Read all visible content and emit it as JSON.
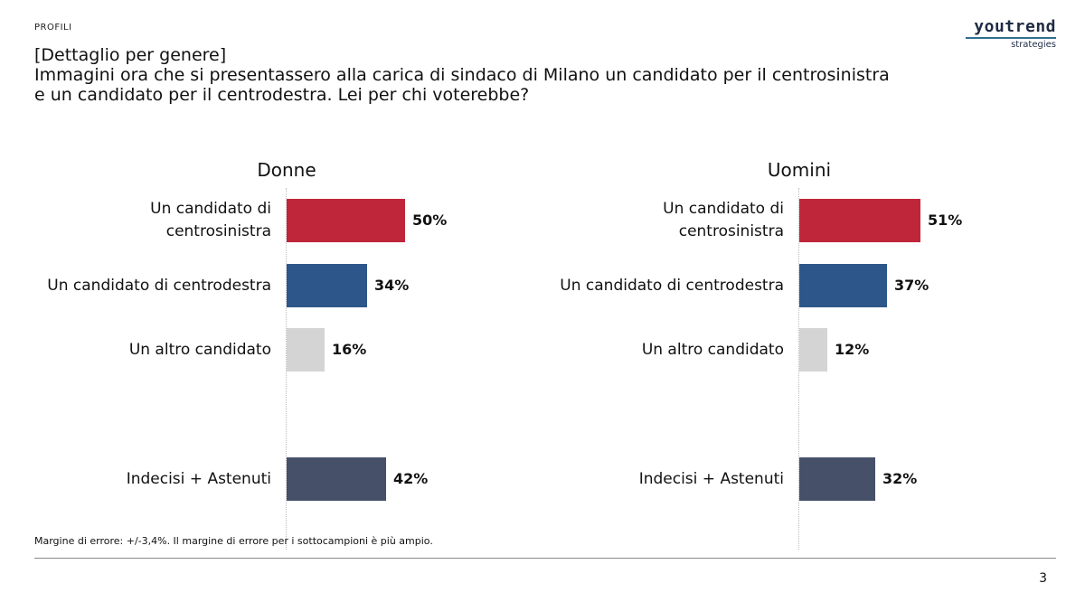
{
  "header": {
    "section_label": "PROFILI",
    "logo": {
      "word": "youtrend",
      "sub": "strategies"
    },
    "title_lines": [
      "[Dettaglio per genere]",
      "Immagini ora che si presentassero alla carica di sindaco di Milano un candidato per il centrosinistra",
      "e un candidato per il centrodestra. Lei per chi voterebbe?"
    ]
  },
  "chart_data": [
    {
      "type": "bar",
      "orientation": "horizontal",
      "title": "Donne",
      "categories": [
        "Un candidato di centrosinistra",
        "Un candidato di centrodestra",
        "Un altro candidato",
        "Indecisi + Astenuti"
      ],
      "category_lines": [
        [
          "Un candidato di",
          "centrosinistra"
        ],
        [
          "Un candidato di centrodestra"
        ],
        [
          "Un altro candidato"
        ],
        [
          "Indecisi + Astenuti"
        ]
      ],
      "values": [
        50,
        34,
        16,
        42
      ],
      "value_labels": [
        "50%",
        "34%",
        "16%",
        "42%"
      ],
      "unit": "%",
      "colors": [
        "#c0263a",
        "#2d578a",
        "#d4d4d4",
        "#465069"
      ],
      "xlim": [
        0,
        100
      ]
    },
    {
      "type": "bar",
      "orientation": "horizontal",
      "title": "Uomini",
      "categories": [
        "Un candidato di centrosinistra",
        "Un candidato di centrodestra",
        "Un altro candidato",
        "Indecisi + Astenuti"
      ],
      "category_lines": [
        [
          "Un candidato di",
          "centrosinistra"
        ],
        [
          "Un candidato di centrodestra"
        ],
        [
          "Un altro candidato"
        ],
        [
          "Indecisi + Astenuti"
        ]
      ],
      "values": [
        51,
        37,
        12,
        32
      ],
      "value_labels": [
        "51%",
        "37%",
        "12%",
        "32%"
      ],
      "unit": "%",
      "colors": [
        "#c0263a",
        "#2d578a",
        "#d4d4d4",
        "#465069"
      ],
      "xlim": [
        0,
        100
      ]
    }
  ],
  "footer": {
    "note": "Margine di errore: +/-3,4%. Il margine di errore per i sottocampioni è più ampio.",
    "page_number": "3"
  }
}
